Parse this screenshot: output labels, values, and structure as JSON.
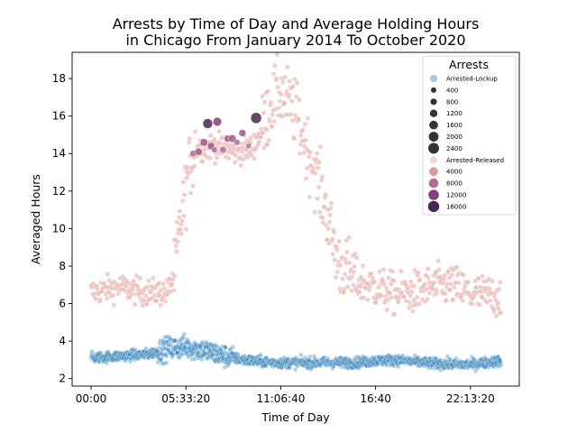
{
  "chart_data": {
    "type": "scatter",
    "title_lines": [
      "Arrests by Time of Day and Average Holding Hours",
      "in Chicago From January 2014 To October 2020"
    ],
    "xlabel": "Time of Day",
    "ylabel": "Averaged Hours",
    "x_tick_labels": [
      "00:00",
      "05:33:20",
      "11:06:40",
      "16:40",
      "22:13:20"
    ],
    "x_tick_values": [
      0,
      20000,
      40000,
      60000,
      80000
    ],
    "xlim": [
      -4000,
      90300
    ],
    "y_ticks": [
      2,
      4,
      6,
      8,
      10,
      12,
      14,
      16,
      18
    ],
    "ylim": [
      1.6,
      19.4
    ],
    "grid": false,
    "legend": {
      "placement": "top-right",
      "title": "Arrests",
      "entries": [
        {
          "label": "Arrested-Lockup",
          "kind": "category",
          "color": "#a6c8e5"
        },
        {
          "label": "400",
          "kind": "size",
          "color": "#333333",
          "size": 400
        },
        {
          "label": "800",
          "kind": "size",
          "color": "#333333",
          "size": 800
        },
        {
          "label": "1200",
          "kind": "size",
          "color": "#333333",
          "size": 1200
        },
        {
          "label": "1600",
          "kind": "size",
          "color": "#333333",
          "size": 1600
        },
        {
          "label": "2000",
          "kind": "size",
          "color": "#333333",
          "size": 2000
        },
        {
          "label": "2400",
          "kind": "size",
          "color": "#333333",
          "size": 2400
        },
        {
          "label": "Arrested-Released",
          "kind": "category",
          "color": "#f3d6d0"
        },
        {
          "label": "4000",
          "kind": "hue",
          "color": "#d99aa1",
          "size": 4000
        },
        {
          "label": "8000",
          "kind": "hue",
          "color": "#b06e93",
          "size": 8000
        },
        {
          "label": "12000",
          "kind": "hue",
          "color": "#84407d",
          "size": 12000
        },
        {
          "label": "16000",
          "kind": "hue",
          "color": "#45274f",
          "size": 16000
        }
      ]
    },
    "series": [
      {
        "name": "Arrested-Lockup",
        "color": "#1f77b4",
        "profile": [
          [
            0,
            3.1
          ],
          [
            6000,
            3.2
          ],
          [
            12000,
            3.3
          ],
          [
            16000,
            3.6
          ],
          [
            20000,
            3.7
          ],
          [
            24000,
            3.5
          ],
          [
            28000,
            3.2
          ],
          [
            32000,
            3.0
          ],
          [
            36000,
            2.9
          ],
          [
            40000,
            2.85
          ],
          [
            48000,
            2.85
          ],
          [
            56000,
            2.85
          ],
          [
            60000,
            2.95
          ],
          [
            64000,
            3.0
          ],
          [
            68000,
            2.9
          ],
          [
            72000,
            2.8
          ],
          [
            80000,
            2.75
          ],
          [
            86400,
            2.95
          ]
        ]
      },
      {
        "name": "Arrested-Released",
        "color": "#e8b9b5",
        "profile": [
          [
            0,
            6.6
          ],
          [
            6000,
            6.9
          ],
          [
            11000,
            6.6
          ],
          [
            16000,
            6.6
          ],
          [
            17500,
            7.5
          ],
          [
            19000,
            10.5
          ],
          [
            20500,
            13.0
          ],
          [
            22000,
            14.3
          ],
          [
            26000,
            14.4
          ],
          [
            30000,
            14.1
          ],
          [
            34000,
            14.3
          ],
          [
            36000,
            15.2
          ],
          [
            38000,
            16.7
          ],
          [
            40000,
            17.3
          ],
          [
            43000,
            16.2
          ],
          [
            46000,
            14.0
          ],
          [
            48000,
            12.4
          ],
          [
            50000,
            10.5
          ],
          [
            52000,
            8.2
          ],
          [
            56000,
            7.2
          ],
          [
            60000,
            6.9
          ],
          [
            64000,
            6.5
          ],
          [
            68000,
            6.6
          ],
          [
            72000,
            6.9
          ],
          [
            76000,
            7.0
          ],
          [
            80000,
            6.5
          ],
          [
            86400,
            6.4
          ]
        ]
      }
    ],
    "highlight_points": [
      {
        "x": 21500,
        "y": 14.0,
        "arrests": 8000
      },
      {
        "x": 22700,
        "y": 14.1,
        "arrests": 9000
      },
      {
        "x": 23800,
        "y": 14.6,
        "arrests": 10000
      },
      {
        "x": 24600,
        "y": 15.6,
        "arrests": 14000
      },
      {
        "x": 25300,
        "y": 14.4,
        "arrests": 9000
      },
      {
        "x": 26600,
        "y": 15.7,
        "arrests": 12000
      },
      {
        "x": 27800,
        "y": 14.2,
        "arrests": 8000
      },
      {
        "x": 28800,
        "y": 14.8,
        "arrests": 9000
      },
      {
        "x": 29800,
        "y": 14.8,
        "arrests": 10000
      },
      {
        "x": 30800,
        "y": 14.6,
        "arrests": 7000
      },
      {
        "x": 31900,
        "y": 15.1,
        "arrests": 9000
      },
      {
        "x": 33200,
        "y": 14.4,
        "arrests": 6000
      },
      {
        "x": 34800,
        "y": 15.9,
        "arrests": 16000
      },
      {
        "x": 26000,
        "y": 14.2,
        "arrests": 7000
      }
    ]
  }
}
